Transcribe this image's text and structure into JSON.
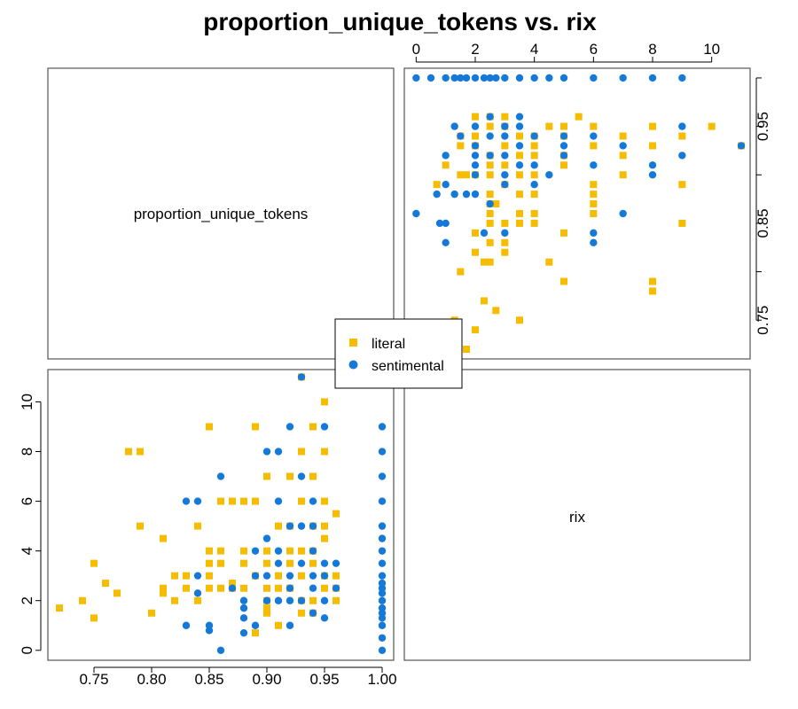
{
  "chart_data": {
    "type": "scatter",
    "subtype": "pairs-matrix",
    "title": "proportion_unique_tokens vs. rix",
    "variables": [
      "proportion_unique_tokens",
      "rix"
    ],
    "legend": {
      "placement": "center",
      "entries": [
        {
          "label": "literal",
          "color": "#F5BC00",
          "marker": "square"
        },
        {
          "label": "sentimental",
          "color": "#1479D8",
          "marker": "circle"
        }
      ]
    },
    "axes": {
      "proportion_unique_tokens": {
        "range": [
          0.71,
          1.01
        ],
        "ticks": [
          "0.75",
          "0.80",
          "0.85",
          "0.90",
          "0.95",
          "1.00"
        ],
        "ticks_upper_right": [
          "0.75",
          "0.85",
          "0.95"
        ]
      },
      "rix": {
        "range": [
          -0.4,
          11.3
        ],
        "ticks": [
          "0",
          "2",
          "4",
          "6",
          "8",
          "10"
        ]
      }
    },
    "grid": false,
    "series": [
      {
        "name": "literal",
        "points": [
          [
            0.72,
            1.7
          ],
          [
            0.74,
            2.0
          ],
          [
            0.75,
            3.5
          ],
          [
            0.75,
            1.3
          ],
          [
            0.76,
            2.7
          ],
          [
            0.77,
            2.3
          ],
          [
            0.78,
            8.0
          ],
          [
            0.79,
            8.0
          ],
          [
            0.79,
            5.0
          ],
          [
            0.8,
            1.5
          ],
          [
            0.81,
            4.5
          ],
          [
            0.81,
            2.5
          ],
          [
            0.81,
            2.3
          ],
          [
            0.82,
            3.0
          ],
          [
            0.82,
            2.0
          ],
          [
            0.83,
            2.5
          ],
          [
            0.83,
            3.0
          ],
          [
            0.84,
            2.0
          ],
          [
            0.84,
            5.0
          ],
          [
            0.85,
            9.0
          ],
          [
            0.85,
            3.5
          ],
          [
            0.85,
            4.0
          ],
          [
            0.85,
            3.0
          ],
          [
            0.85,
            2.5
          ],
          [
            0.86,
            3.5
          ],
          [
            0.86,
            6.0
          ],
          [
            0.86,
            2.5
          ],
          [
            0.86,
            4.0
          ],
          [
            0.87,
            2.7
          ],
          [
            0.87,
            6.0
          ],
          [
            0.87,
            2.5
          ],
          [
            0.88,
            6.0
          ],
          [
            0.88,
            3.5
          ],
          [
            0.88,
            4.0
          ],
          [
            0.88,
            2.5
          ],
          [
            0.89,
            3.0
          ],
          [
            0.89,
            0.7
          ],
          [
            0.89,
            6.0
          ],
          [
            0.89,
            9.0
          ],
          [
            0.9,
            2.5
          ],
          [
            0.9,
            3.5
          ],
          [
            0.9,
            4.0
          ],
          [
            0.9,
            1.5
          ],
          [
            0.9,
            1.7
          ],
          [
            0.9,
            2.0
          ],
          [
            0.9,
            7.0
          ],
          [
            0.91,
            5.0
          ],
          [
            0.91,
            3.0
          ],
          [
            0.91,
            2.5
          ],
          [
            0.91,
            1.0
          ],
          [
            0.92,
            7.0
          ],
          [
            0.92,
            5.0
          ],
          [
            0.92,
            4.0
          ],
          [
            0.92,
            3.5
          ],
          [
            0.92,
            2.5
          ],
          [
            0.93,
            11.0
          ],
          [
            0.93,
            8.0
          ],
          [
            0.93,
            6.0
          ],
          [
            0.93,
            4.0
          ],
          [
            0.93,
            3.0
          ],
          [
            0.93,
            2.0
          ],
          [
            0.93,
            1.5
          ],
          [
            0.94,
            9.0
          ],
          [
            0.94,
            7.0
          ],
          [
            0.94,
            5.0
          ],
          [
            0.94,
            3.5
          ],
          [
            0.94,
            2.0
          ],
          [
            0.94,
            1.5
          ],
          [
            0.95,
            10.0
          ],
          [
            0.95,
            8.0
          ],
          [
            0.95,
            6.0
          ],
          [
            0.95,
            5.0
          ],
          [
            0.95,
            4.5
          ],
          [
            0.95,
            3.0
          ],
          [
            0.95,
            2.5
          ],
          [
            0.96,
            5.5
          ],
          [
            0.96,
            3.0
          ],
          [
            0.96,
            2.0
          ],
          [
            0.96,
            2.5
          ],
          [
            0.94,
            4.0
          ]
        ]
      },
      {
        "name": "sentimental",
        "points": [
          [
            0.83,
            6.0
          ],
          [
            0.83,
            1.0
          ],
          [
            0.84,
            6.0
          ],
          [
            0.84,
            3.0
          ],
          [
            0.84,
            2.3
          ],
          [
            0.85,
            1.0
          ],
          [
            0.85,
            0.8
          ],
          [
            0.86,
            7.0
          ],
          [
            0.86,
            0.0
          ],
          [
            0.87,
            2.5
          ],
          [
            0.88,
            0.7
          ],
          [
            0.88,
            1.3
          ],
          [
            0.88,
            1.7
          ],
          [
            0.88,
            2.0
          ],
          [
            0.89,
            1.0
          ],
          [
            0.89,
            3.0
          ],
          [
            0.89,
            4.0
          ],
          [
            0.9,
            2.0
          ],
          [
            0.9,
            8.0
          ],
          [
            0.9,
            3.0
          ],
          [
            0.91,
            8.0
          ],
          [
            0.91,
            6.0
          ],
          [
            0.91,
            4.0
          ],
          [
            0.91,
            2.0
          ],
          [
            0.92,
            9.0
          ],
          [
            0.92,
            1.0
          ],
          [
            0.92,
            5.0
          ],
          [
            0.92,
            3.0
          ],
          [
            0.92,
            2.0
          ],
          [
            0.93,
            7.0
          ],
          [
            0.93,
            5.0
          ],
          [
            0.93,
            3.5
          ],
          [
            0.93,
            2.0
          ],
          [
            0.93,
            11.0
          ],
          [
            0.94,
            5.0
          ],
          [
            0.94,
            4.0
          ],
          [
            0.94,
            3.0
          ],
          [
            0.94,
            2.5
          ],
          [
            0.94,
            1.5
          ],
          [
            0.94,
            6.0
          ],
          [
            0.95,
            3.5
          ],
          [
            0.95,
            3.0
          ],
          [
            0.95,
            2.0
          ],
          [
            0.95,
            1.3
          ],
          [
            0.95,
            9.0
          ],
          [
            0.96,
            3.5
          ],
          [
            0.96,
            2.5
          ],
          [
            0.92,
            2.5
          ],
          [
            0.91,
            3.5
          ],
          [
            0.9,
            4.5
          ],
          [
            1.0,
            0.0
          ],
          [
            1.0,
            0.5
          ],
          [
            1.0,
            1.0
          ],
          [
            1.0,
            1.3
          ],
          [
            1.0,
            1.5
          ],
          [
            1.0,
            1.7
          ],
          [
            1.0,
            2.0
          ],
          [
            1.0,
            2.3
          ],
          [
            1.0,
            2.5
          ],
          [
            1.0,
            2.7
          ],
          [
            1.0,
            3.0
          ],
          [
            1.0,
            3.5
          ],
          [
            1.0,
            4.0
          ],
          [
            1.0,
            4.5
          ],
          [
            1.0,
            5.0
          ],
          [
            1.0,
            6.0
          ],
          [
            1.0,
            7.0
          ],
          [
            1.0,
            8.0
          ],
          [
            1.0,
            9.0
          ]
        ]
      }
    ]
  }
}
